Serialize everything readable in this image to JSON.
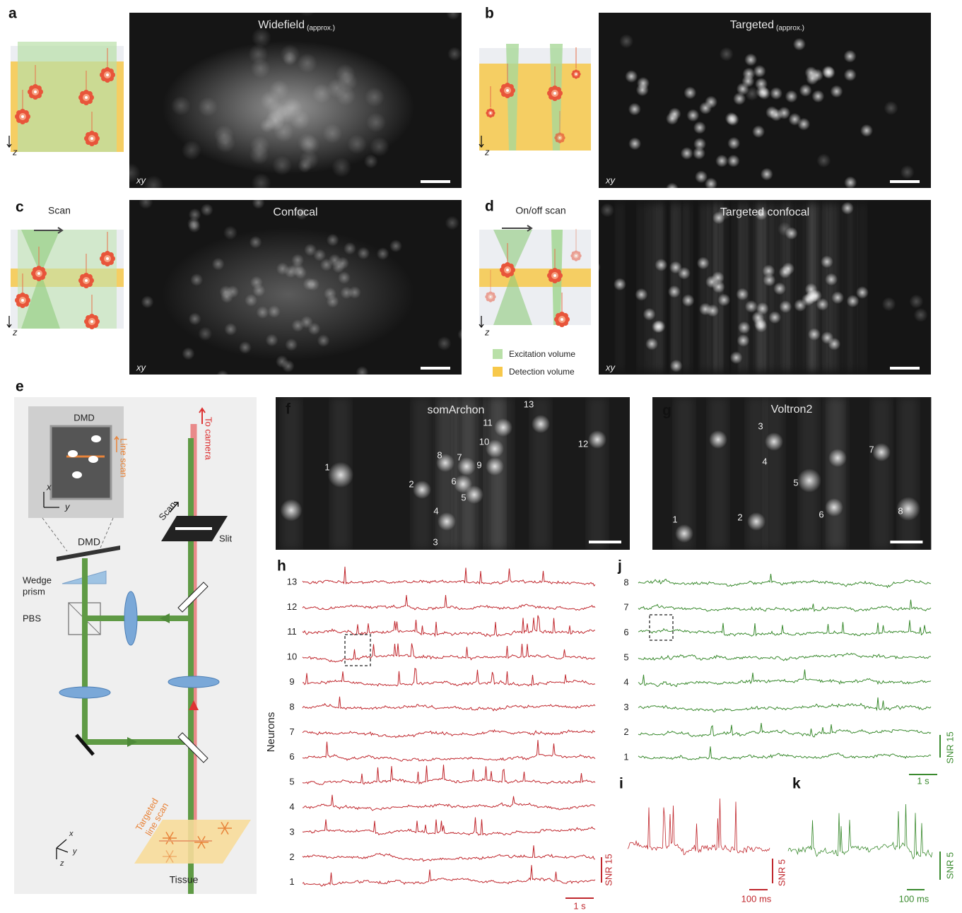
{
  "a": {
    "letter": "a",
    "title": "Widefield",
    "title_note": "(approx.)",
    "plane": "xy",
    "depth_axis": "z"
  },
  "b": {
    "letter": "b",
    "title": "Targeted",
    "title_note": "(approx.)",
    "plane": "xy",
    "depth_axis": "z"
  },
  "c": {
    "letter": "c",
    "scan_label": "Scan",
    "title": "Confocal",
    "plane": "xy",
    "depth_axis": "z"
  },
  "d": {
    "letter": "d",
    "scan_label": "On/off scan",
    "title": "Targeted confocal",
    "plane": "xy",
    "depth_axis": "z",
    "legend": [
      "Excitation volume",
      "Detection volume"
    ]
  },
  "e": {
    "letter": "e",
    "dmd_inset": "DMD",
    "line_scan": "Line scan",
    "inset_axes": [
      "x",
      "y"
    ],
    "dmd": "DMD",
    "scan": "Scan",
    "slit": "Slit",
    "to_camera": "To camera",
    "wedge_prism": [
      "Wedge",
      "prism"
    ],
    "pbs": "PBS",
    "targeted_line_scan": [
      "Targeted",
      "line scan"
    ],
    "tissue": "Tissue",
    "axes": [
      "x",
      "y",
      "z"
    ]
  },
  "f": {
    "letter": "f",
    "title": "somArchon",
    "neuron_labels": [
      "1",
      "2",
      "3",
      "4",
      "5",
      "6",
      "7",
      "8",
      "9",
      "10",
      "11",
      "12",
      "13"
    ]
  },
  "g": {
    "letter": "g",
    "title": "Voltron2",
    "neuron_labels": [
      "1",
      "2",
      "3",
      "4",
      "5",
      "6",
      "7",
      "8"
    ]
  },
  "h": {
    "letter": "h",
    "y_label": "Neurons",
    "row_labels": [
      "13",
      "12",
      "11",
      "10",
      "9",
      "8",
      "7",
      "6",
      "5",
      "4",
      "3",
      "2",
      "1"
    ],
    "snr_bar": "SNR 15",
    "time_bar": "1 s"
  },
  "i": {
    "letter": "i",
    "snr_bar": "SNR 5",
    "time_bar": "100 ms"
  },
  "j": {
    "letter": "j",
    "row_labels": [
      "8",
      "7",
      "6",
      "5",
      "4",
      "3",
      "2",
      "1"
    ],
    "snr_bar": "SNR 15",
    "time_bar": "1 s"
  },
  "k": {
    "letter": "k",
    "snr_bar": "SNR 5",
    "time_bar": "100 ms"
  }
}
